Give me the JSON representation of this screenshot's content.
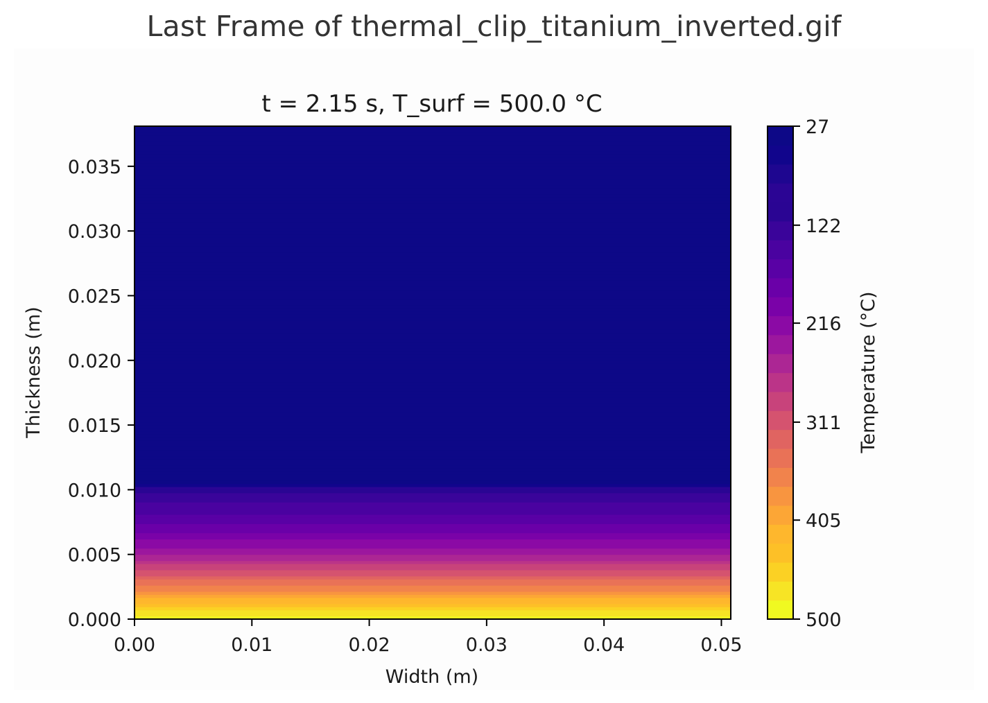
{
  "page": {
    "title": "Last Frame of thermal_clip_titanium_inverted.gif"
  },
  "chart_data": {
    "type": "heatmap",
    "title": "t = 2.15 s, T_surf = 500.0 °C",
    "xlabel": "Width (m)",
    "ylabel": "Thickness (m)",
    "xlim": [
      0,
      0.0508
    ],
    "ylim": [
      0,
      0.0381
    ],
    "x_ticks": [
      "0.00",
      "0.01",
      "0.02",
      "0.03",
      "0.04",
      "0.05"
    ],
    "x_tick_values": [
      0,
      0.01,
      0.02,
      0.03,
      0.04,
      0.05
    ],
    "y_ticks": [
      "0.000",
      "0.005",
      "0.010",
      "0.015",
      "0.020",
      "0.025",
      "0.030",
      "0.035"
    ],
    "y_tick_values": [
      0,
      0.005,
      0.01,
      0.015,
      0.02,
      0.025,
      0.03,
      0.035
    ],
    "colormap": "plasma (inverted)",
    "colorbar": {
      "label": "Temperature (°C)",
      "min": 27,
      "max": 500,
      "levels": 27,
      "ticks": [
        "27",
        "122",
        "216",
        "311",
        "405",
        "500"
      ],
      "tick_values": [
        27,
        122,
        216,
        311,
        405,
        500
      ],
      "colors": [
        "#f0f921",
        "#f7e425",
        "#fbd124",
        "#fdc027",
        "#feb72d",
        "#fca636",
        "#f89540",
        "#f1834c",
        "#e97257",
        "#e06461",
        "#d5536f",
        "#c8437b",
        "#bb3488",
        "#ac2694",
        "#9c179e",
        "#8b0aa5",
        "#7a02a8",
        "#6a00a8",
        "#5901a5",
        "#4a02a0",
        "#3a049a",
        "#2a0593",
        "#2b0594",
        "#1e0690",
        "#11058c",
        "#0d0887"
      ]
    },
    "temperature_profile": {
      "thickness_m": [
        0,
        0.0005,
        0.001,
        0.0015,
        0.002,
        0.0025,
        0.003,
        0.0035,
        0.004,
        0.0045,
        0.005,
        0.006,
        0.007,
        0.008,
        0.01,
        0.0105,
        0.015,
        0.02,
        0.025,
        0.03,
        0.035,
        0.0381
      ],
      "temperature_c": [
        500,
        470,
        440,
        412,
        385,
        360,
        336,
        313,
        290,
        268,
        248,
        212,
        180,
        155,
        115,
        27,
        27,
        27,
        27,
        27,
        27,
        27
      ]
    },
    "grid": false,
    "colors": {
      "cold": "#0d0887",
      "hot": "#f0f921",
      "axis": "#000000",
      "text": "#1a1a1a"
    }
  }
}
